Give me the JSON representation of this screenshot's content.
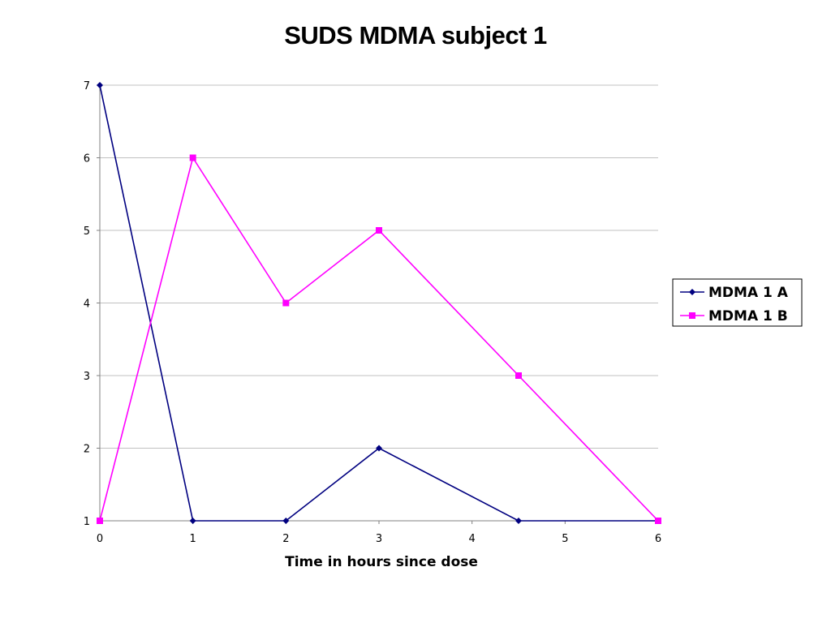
{
  "chart_data": {
    "type": "line",
    "title": "SUDS MDMA subject 1",
    "xlabel": "Time in hours since dose",
    "ylabel": "",
    "xlim": [
      0,
      6
    ],
    "ylim": [
      1,
      7
    ],
    "x_ticks": [
      "0",
      "1",
      "2",
      "3",
      "4",
      "5",
      "6"
    ],
    "y_ticks": [
      "1",
      "2",
      "3",
      "4",
      "5",
      "6",
      "7"
    ],
    "grid": "horizontal",
    "legend_position": "right",
    "series": [
      {
        "name": "MDMA 1 A",
        "color": "#000080",
        "marker": "diamond",
        "points": [
          [
            0,
            7
          ],
          [
            1,
            1
          ],
          [
            2,
            1
          ],
          [
            3,
            2
          ],
          [
            4.5,
            1
          ],
          [
            6,
            1
          ]
        ]
      },
      {
        "name": "MDMA 1 B",
        "color": "#FF00FF",
        "marker": "square",
        "points": [
          [
            0,
            1
          ],
          [
            1,
            6
          ],
          [
            2,
            4
          ],
          [
            3,
            5
          ],
          [
            4.5,
            3
          ],
          [
            6,
            1
          ]
        ]
      }
    ]
  }
}
